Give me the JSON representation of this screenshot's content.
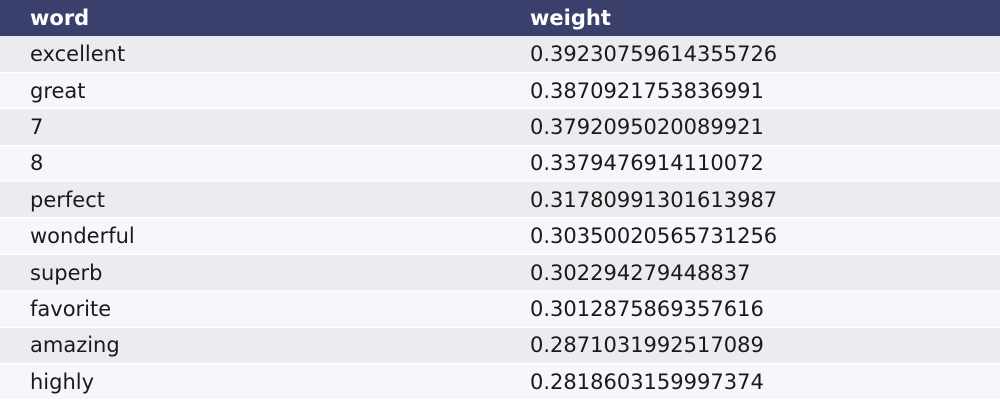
{
  "table": {
    "columns": [
      "word",
      "weight"
    ],
    "rows": [
      {
        "word": "excellent",
        "weight": "0.39230759614355726"
      },
      {
        "word": "great",
        "weight": "0.3870921753836991"
      },
      {
        "word": "7",
        "weight": "0.3792095020089921"
      },
      {
        "word": "8",
        "weight": "0.3379476914110072"
      },
      {
        "word": "perfect",
        "weight": "0.31780991301613987"
      },
      {
        "word": "wonderful",
        "weight": "0.30350020565731256"
      },
      {
        "word": "superb",
        "weight": "0.302294279448837"
      },
      {
        "word": "favorite",
        "weight": "0.3012875869357616"
      },
      {
        "word": "amazing",
        "weight": "0.2871031992517089"
      },
      {
        "word": "highly",
        "weight": "0.2818603159997374"
      }
    ]
  },
  "colors": {
    "header_bg": "#3a3f6b",
    "header_text": "#ffffff",
    "row_odd": "#ebecef",
    "row_even": "#f6f7fb"
  }
}
